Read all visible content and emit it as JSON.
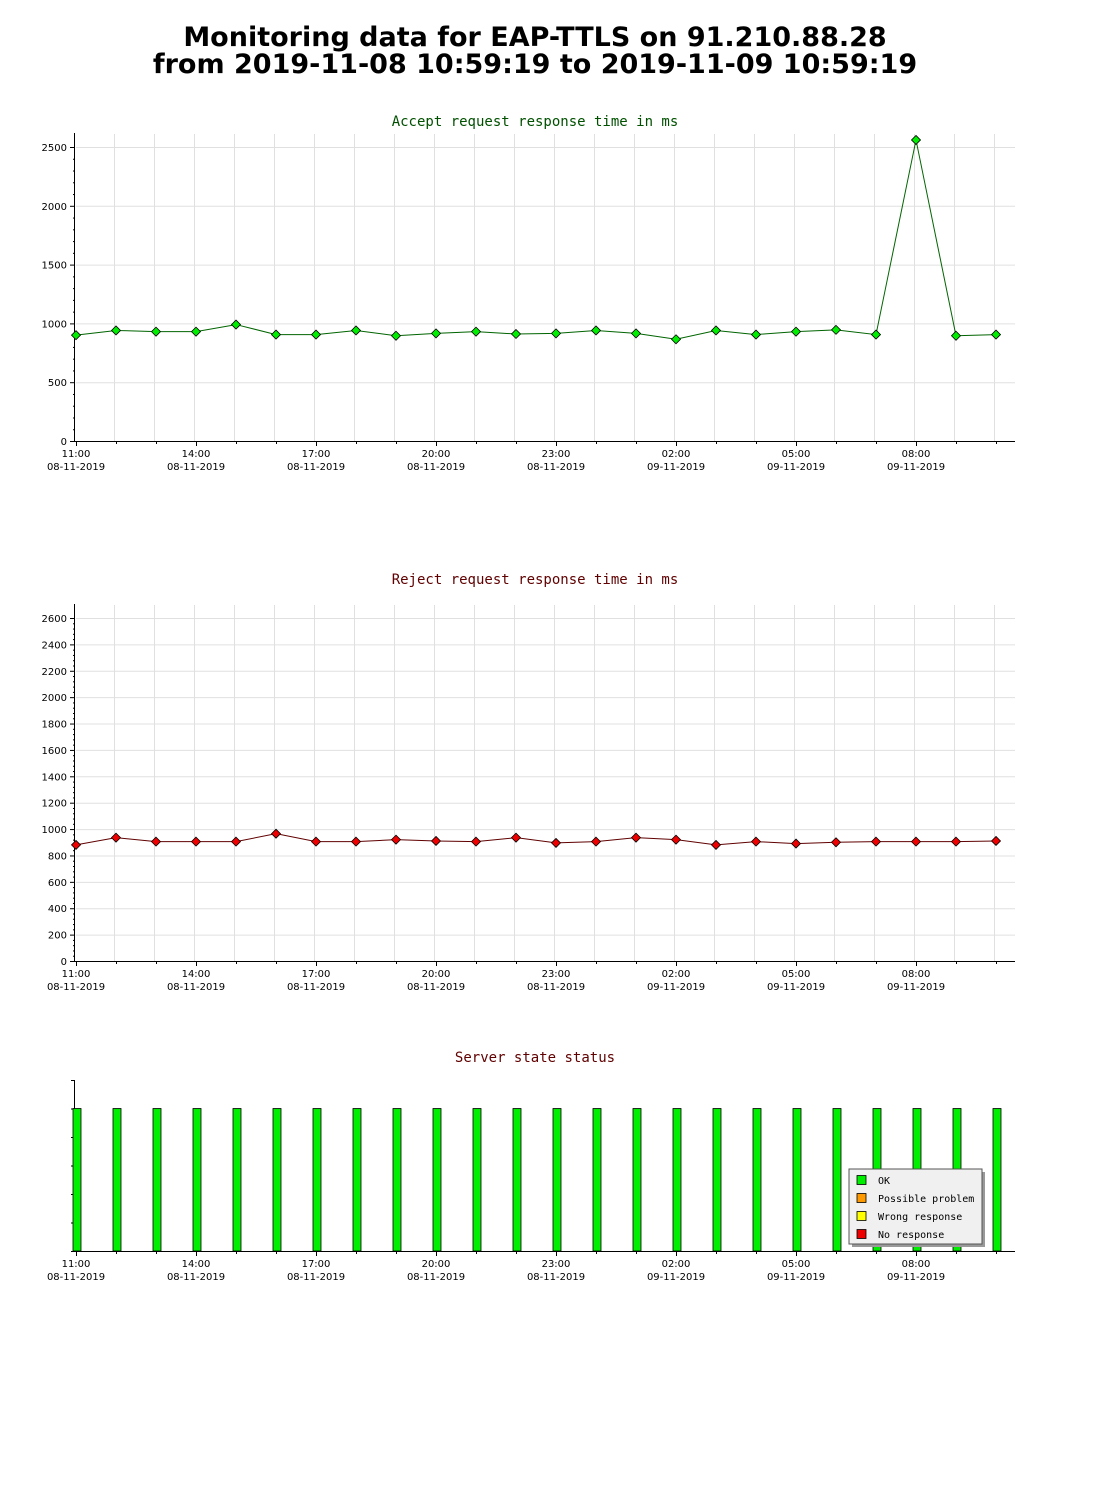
{
  "title": {
    "line1": "Monitoring data for EAP-TTLS on 91.210.88.28",
    "line2": "from 2019-11-08 10:59:19 to 2019-11-09 10:59:19"
  },
  "colors": {
    "accept_line": "#006400",
    "accept_marker": "#00ee00",
    "accept_title": "#005000",
    "reject_line": "#600000",
    "reject_marker": "#ee0000",
    "reject_title": "#600000",
    "status_title": "#600000",
    "ok": "#00ee00",
    "possible_problem": "#ff9900",
    "wrong_response": "#ffff00",
    "no_response": "#ee0000"
  },
  "chart_data": [
    {
      "id": "accept",
      "type": "line",
      "title": "Accept request response time in ms",
      "xlabel": "",
      "ylabel": "",
      "x_unit": "hours after 2019-11-08 11:00",
      "x_range": [
        -0.1,
        23.4
      ],
      "ylim": [
        0,
        2500
      ],
      "yticks": [
        0,
        500,
        1000,
        1500,
        2000,
        2500
      ],
      "ytick_labels": [
        "0",
        "500",
        "1000",
        "1500",
        "2000",
        "2500"
      ],
      "grid": true,
      "x": [
        -0.1,
        0.9,
        1.9,
        2.9,
        3.9,
        4.9,
        5.9,
        6.9,
        7.9,
        8.9,
        9.9,
        10.9,
        11.9,
        12.9,
        13.9,
        14.9,
        15.9,
        16.9,
        17.9,
        18.9,
        19.9,
        20.9,
        21.9,
        22.9
      ],
      "values": [
        900,
        940,
        930,
        930,
        990,
        905,
        905,
        940,
        895,
        915,
        930,
        910,
        915,
        940,
        915,
        865,
        940,
        905,
        930,
        945,
        905,
        2560,
        895,
        905
      ]
    },
    {
      "id": "reject",
      "type": "line",
      "title": "Reject request response time in ms",
      "xlabel": "",
      "ylabel": "",
      "x_unit": "hours after 2019-11-08 11:00",
      "x_range": [
        -0.1,
        23.4
      ],
      "ylim": [
        0,
        2600
      ],
      "yticks": [
        0,
        200,
        400,
        600,
        800,
        1000,
        1200,
        1400,
        1600,
        1800,
        2000,
        2200,
        2400,
        2600
      ],
      "ytick_labels": [
        "0",
        "200",
        "400",
        "600",
        "800",
        "1000",
        "1200",
        "1400",
        "1600",
        "1800",
        "2000",
        "2200",
        "2400",
        "2600"
      ],
      "grid": true,
      "x": [
        -0.1,
        0.9,
        1.9,
        2.9,
        3.9,
        4.9,
        5.9,
        6.9,
        7.9,
        8.9,
        9.9,
        10.9,
        11.9,
        12.9,
        13.9,
        14.9,
        15.9,
        16.9,
        17.9,
        18.9,
        19.9,
        20.9,
        21.9,
        22.9
      ],
      "values": [
        880,
        935,
        905,
        905,
        905,
        965,
        905,
        905,
        920,
        910,
        905,
        935,
        895,
        905,
        935,
        920,
        880,
        905,
        890,
        900,
        905,
        905,
        905,
        910
      ]
    },
    {
      "id": "status",
      "type": "bar",
      "title": "Server state status",
      "xlabel": "",
      "ylabel": "",
      "x_unit": "hours after 2019-11-08 11:00",
      "x_range": [
        -0.1,
        23.4
      ],
      "ylim": [
        0,
        1.2
      ],
      "grid": false,
      "legend_position": "bottom-right",
      "legend": [
        "OK",
        "Possible problem",
        "Wrong response",
        "No response"
      ],
      "x": [
        -0.1,
        0.9,
        1.9,
        2.9,
        3.9,
        4.9,
        5.9,
        6.9,
        7.9,
        8.9,
        9.9,
        10.9,
        11.9,
        12.9,
        13.9,
        14.9,
        15.9,
        16.9,
        17.9,
        18.9,
        19.9,
        20.9,
        21.9,
        22.9
      ],
      "values": [
        1,
        1,
        1,
        1,
        1,
        1,
        1,
        1,
        1,
        1,
        1,
        1,
        1,
        1,
        1,
        1,
        1,
        1,
        1,
        1,
        1,
        1,
        1,
        1
      ],
      "states": [
        "OK",
        "OK",
        "OK",
        "OK",
        "OK",
        "OK",
        "OK",
        "OK",
        "OK",
        "OK",
        "OK",
        "OK",
        "OK",
        "OK",
        "OK",
        "OK",
        "OK",
        "OK",
        "OK",
        "OK",
        "OK",
        "OK",
        "OK",
        "OK"
      ]
    }
  ],
  "x_axis": {
    "ticks": [
      0,
      3,
      6,
      9,
      12,
      15,
      18,
      21
    ],
    "time_labels": [
      "11:00",
      "14:00",
      "17:00",
      "20:00",
      "23:00",
      "02:00",
      "05:00",
      "08:00"
    ],
    "date_labels": [
      "08-11-2019",
      "08-11-2019",
      "08-11-2019",
      "08-11-2019",
      "08-11-2019",
      "09-11-2019",
      "09-11-2019",
      "09-11-2019"
    ]
  }
}
